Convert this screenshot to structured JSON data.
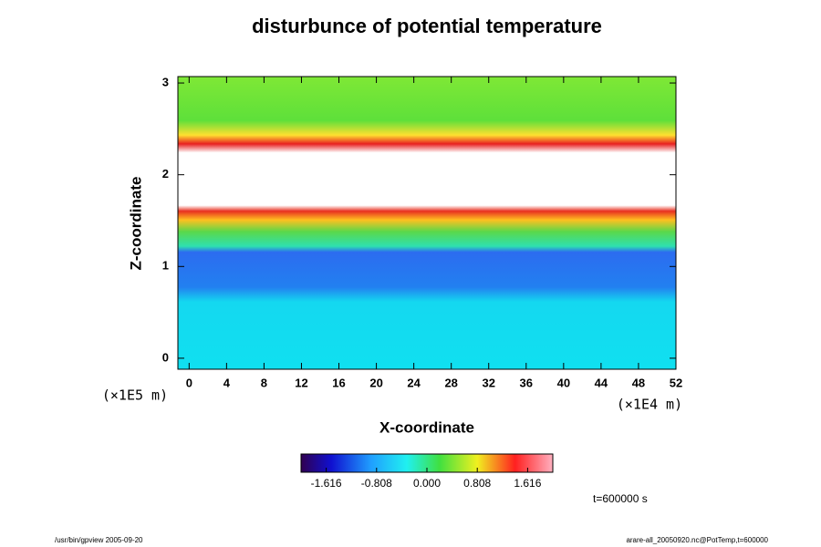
{
  "chart_data": {
    "type": "contour",
    "title": "disturbunce of potential temperature",
    "x_label": "X-coordinate",
    "y_label": "Z-coordinate",
    "x_unit": "(×1E4 m)",
    "y_unit": "(×1E5 m)",
    "xlim": [
      -1.2,
      52
    ],
    "xticks": [
      0,
      4,
      8,
      12,
      16,
      20,
      24,
      28,
      32,
      36,
      40,
      44,
      48,
      52
    ],
    "ylim": [
      -0.12,
      3.07
    ],
    "yticks": [
      0,
      1,
      2,
      3
    ],
    "colorbar": {
      "lim": [
        -2.02,
        2.02
      ],
      "ticks": [
        -1.616,
        -0.808,
        {
          "value": 0,
          "label": "0.000"
        },
        0.808,
        1.616
      ]
    },
    "time_label": "t=600000 s",
    "footer_left": "/usr/bin/gpview 2005-09-20",
    "footer_right": "arare-all_20050920.nc@PotTemp,t=600000"
  }
}
